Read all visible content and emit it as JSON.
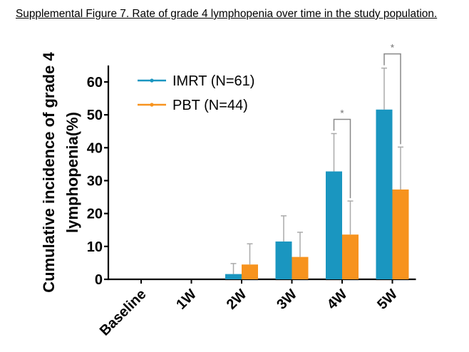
{
  "figure": {
    "caption": "Supplemental Figure 7. Rate of grade 4 lymphopenia over time in the study population."
  },
  "chart_data": {
    "type": "bar",
    "ylabel_lines": [
      "Cumulative incidence of grade 4",
      "lymphopenia(%)"
    ],
    "xlabel": "",
    "categories": [
      "Baseline",
      "1W",
      "2W",
      "3W",
      "4W",
      "5W"
    ],
    "ylim": [
      0,
      65
    ],
    "yticks": [
      0,
      10,
      20,
      30,
      40,
      50,
      60
    ],
    "grid": false,
    "legend_position": "top-left",
    "series": [
      {
        "name": "IMRT (N=61)",
        "color": "#1a96c0",
        "values": [
          0,
          0,
          1.6,
          11.5,
          32.8,
          51.6
        ],
        "errors": [
          0,
          0,
          3.2,
          7.8,
          11.5,
          12.6
        ]
      },
      {
        "name": "PBT (N=44)",
        "color": "#f7931e",
        "values": [
          0,
          0,
          4.5,
          6.8,
          13.6,
          27.3
        ],
        "errors": [
          0,
          0,
          6.3,
          7.5,
          10.2,
          12.9
        ]
      }
    ],
    "significance": [
      {
        "category": "4W",
        "label": "*"
      },
      {
        "category": "5W",
        "label": "*"
      }
    ]
  }
}
